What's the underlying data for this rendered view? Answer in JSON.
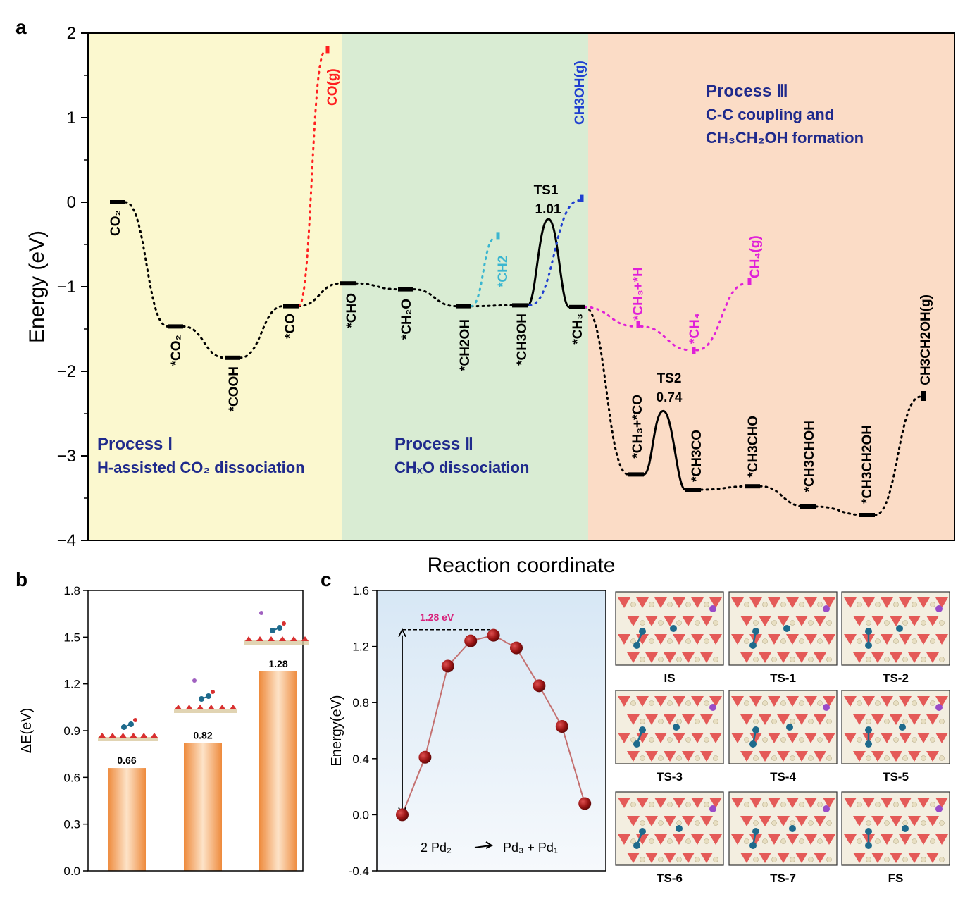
{
  "colors": {
    "bg1": "#fbf8cf",
    "bg2": "#d9ecd3",
    "bg3": "#fbdcc6",
    "process_text": "#1f2a8c",
    "red_path": "#ff2020",
    "cyan_path": "#3ab6d0",
    "blue_path": "#1f3fd0",
    "magenta_path": "#e020d8",
    "bar_fill": "#f4a05c",
    "point": "#8e1010",
    "line_c": "#c47070",
    "annot_pink": "#d8207a"
  },
  "panel_labels": {
    "a": "a",
    "b": "b",
    "c": "c"
  },
  "chart_data": [
    {
      "id": "a",
      "type": "line",
      "ylabel": "Energy (eV)",
      "xlabel": "Reaction coordinate",
      "ylim": [
        -4,
        2
      ],
      "yticks": [
        "2",
        "1",
        "0",
        "−1",
        "−2",
        "−3",
        "−4"
      ],
      "ytick_values": [
        2,
        1,
        0,
        -1,
        -2,
        -3,
        -4
      ],
      "processes": [
        {
          "title": "Process Ⅰ",
          "subtitle": "H-assisted CO₂ dissociation"
        },
        {
          "title": "Process Ⅱ",
          "subtitle": "CHₓO dissociation"
        },
        {
          "title": "Process Ⅲ",
          "subtitle": "C-C coupling and",
          "subtitle2": "CH₃CH₂OH formation"
        }
      ],
      "levels": [
        {
          "label": "CO₂",
          "energy": 0.0,
          "x": 1
        },
        {
          "label": "*CO₂",
          "energy": -1.47,
          "x": 2
        },
        {
          "label": "*COOH",
          "energy": -1.84,
          "x": 3
        },
        {
          "label": "*CO",
          "energy": -1.23,
          "x": 4
        },
        {
          "label": "*CHO",
          "energy": -0.96,
          "x": 5
        },
        {
          "label": "*CH₂O",
          "energy": -1.03,
          "x": 6
        },
        {
          "label": "*CH2OH",
          "energy": -1.23,
          "x": 7
        },
        {
          "label": "*CH3OH",
          "energy": -1.22,
          "x": 8
        },
        {
          "label": "*CH₃",
          "energy": -1.24,
          "x": 9
        },
        {
          "label": "*CH₃+*CO",
          "energy": -3.22,
          "x": 10
        },
        {
          "label": "*CH3CO",
          "energy": -3.4,
          "x": 11
        },
        {
          "label": "*CH3CHO",
          "energy": -3.36,
          "x": 12
        },
        {
          "label": "*CH3CHOH",
          "energy": -3.6,
          "x": 13
        },
        {
          "label": "*CH3CH2OH",
          "energy": -3.7,
          "x": 14
        },
        {
          "label": "CH3CH2OH(g)",
          "energy": -2.3,
          "x": 15
        }
      ],
      "branches": [
        {
          "label": "CO(g)",
          "energy": 1.78,
          "from": "*CO",
          "color": "red"
        },
        {
          "label": "*CH2",
          "energy": -0.42,
          "from": "*CH2OH",
          "color": "cyan"
        },
        {
          "label": "CH3OH(g)",
          "energy": 0.02,
          "from": "*CH3OH",
          "color": "blue"
        },
        {
          "label": "*CH₃+*H",
          "energy": -1.47,
          "from": "*CH₃",
          "color": "magenta"
        },
        {
          "label": "*CH₄",
          "energy": -1.75,
          "from": "*CH₃+*H",
          "color": "magenta"
        },
        {
          "label": "CH₄(g)",
          "energy": -0.96,
          "from": "*CH₄",
          "color": "magenta"
        }
      ],
      "transition_states": [
        {
          "label": "TS1",
          "value": "1.01",
          "energy": -0.2
        },
        {
          "label": "TS2",
          "value": "0.74",
          "energy": -2.47
        }
      ]
    },
    {
      "id": "b",
      "type": "bar",
      "ylabel": "ΔE(eV)",
      "ylim": [
        0,
        1.8
      ],
      "yticks": [
        "1.8",
        "1.5",
        "1.2",
        "0.9",
        "0.6",
        "0.3",
        "0.0"
      ],
      "ytick_values": [
        1.8,
        1.5,
        1.2,
        0.9,
        0.6,
        0.3,
        0.0
      ],
      "values": [
        0.66,
        0.82,
        1.28
      ],
      "value_labels": [
        "0.66",
        "0.82",
        "1.28"
      ]
    },
    {
      "id": "c",
      "type": "line",
      "ylabel": "Energy(eV)",
      "ylim": [
        -0.4,
        1.6
      ],
      "yticks": [
        "1.6",
        "1.2",
        "0.8",
        "0.4",
        "0.0",
        "-0.4"
      ],
      "ytick_values": [
        1.6,
        1.2,
        0.8,
        0.4,
        0.0,
        -0.4
      ],
      "x": [
        0,
        1,
        2,
        3,
        4,
        5,
        6,
        7,
        8
      ],
      "values": [
        0.0,
        0.41,
        1.06,
        1.24,
        1.28,
        1.19,
        0.92,
        0.63,
        0.08
      ],
      "barrier_label": "1.28 eV",
      "reaction_label_left": "2 Pd₂",
      "reaction_label_right": "Pd₃ + Pd₁",
      "structures": [
        "IS",
        "TS-1",
        "TS-2",
        "TS-3",
        "TS-4",
        "TS-5",
        "TS-6",
        "TS-7",
        "FS"
      ]
    }
  ]
}
